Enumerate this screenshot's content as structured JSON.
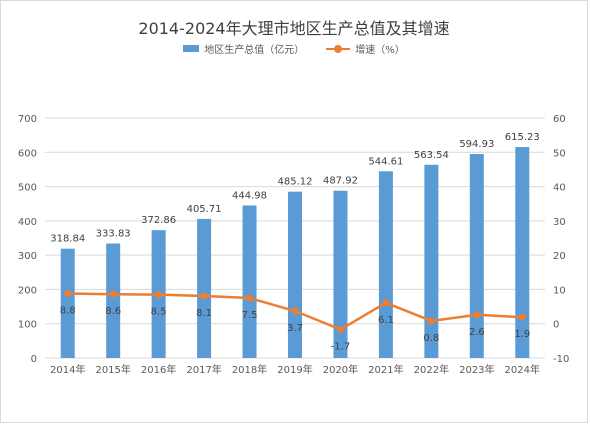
{
  "chart_data": {
    "type": "bar",
    "title": "2014-2024年大理市地区生产总值及其增速",
    "categories": [
      "2014年",
      "2015年",
      "2016年",
      "2017年",
      "2018年",
      "2019年",
      "2020年",
      "2021年",
      "2022年",
      "2023年",
      "2024年"
    ],
    "series": [
      {
        "name": "地区生产总值（亿元）",
        "type": "bar",
        "axis": "left",
        "color": "#5b9bd5",
        "values": [
          318.84,
          333.83,
          372.86,
          405.71,
          444.98,
          485.12,
          487.92,
          544.61,
          563.54,
          594.93,
          615.23
        ]
      },
      {
        "name": "增速（%）",
        "type": "line",
        "axis": "right",
        "color": "#ed7d31",
        "values": [
          8.8,
          8.6,
          8.5,
          8.1,
          7.5,
          3.7,
          -1.7,
          6.1,
          0.8,
          2.6,
          1.9
        ]
      }
    ],
    "ylim_left": [
      0,
      700
    ],
    "yticks_left": [
      0,
      100,
      200,
      300,
      400,
      500,
      600,
      700
    ],
    "ylim_right": [
      -10,
      60
    ],
    "yticks_right": [
      -10,
      0,
      10,
      20,
      30,
      40,
      50,
      60
    ],
    "grid": true,
    "legend_position": "top"
  }
}
